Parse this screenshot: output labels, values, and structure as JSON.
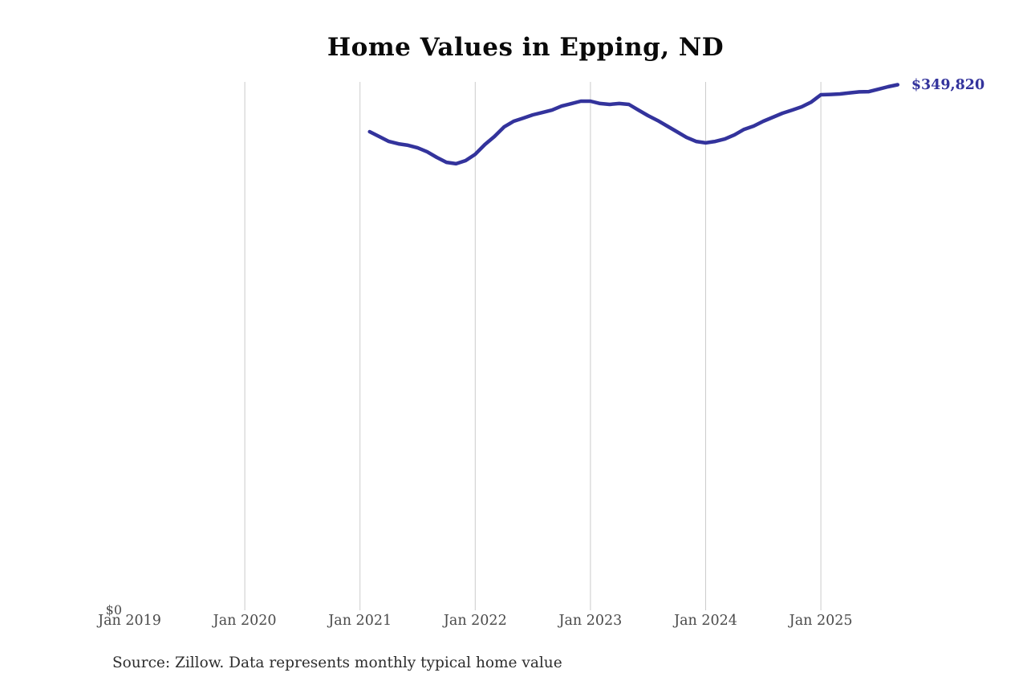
{
  "page": {
    "title": "Home Values in Epping, ND",
    "source_note": "Source: Zillow. Data represents monthly typical home value"
  },
  "chart_data": {
    "type": "line",
    "title": "Home Values in Epping, ND",
    "xlabel": "",
    "ylabel": "",
    "x_axis_start": "2019-01",
    "x_tick_labels": [
      "Jan 2019",
      "Jan 2020",
      "Jan 2021",
      "Jan 2022",
      "Jan 2023",
      "Jan 2024",
      "Jan 2025"
    ],
    "y_axis": {
      "zero_label": "$0",
      "min": 0,
      "top_value": 349820
    },
    "end_label": "$349,820",
    "latest_value": 349820,
    "gridlines": {
      "show": true,
      "skip_first_tick": true,
      "color": "#cccccc"
    },
    "colors": {
      "line": "#33339c",
      "end_label": "#33339c",
      "axis_text": "#4a4a4a"
    },
    "series": [
      {
        "name": "Monthly typical home value",
        "start_month": "2021-02",
        "end_month": "2025-09",
        "color": "#33339c",
        "values": [
          318300,
          315100,
          311800,
          310200,
          309200,
          307500,
          304800,
          301100,
          297800,
          296800,
          298900,
          303200,
          309700,
          315100,
          321500,
          325300,
          327400,
          329600,
          331200,
          332800,
          335500,
          337100,
          338800,
          338800,
          337200,
          336600,
          337200,
          336600,
          332800,
          329100,
          325800,
          322100,
          318300,
          314500,
          311800,
          310800,
          311800,
          313400,
          316200,
          319900,
          322100,
          325300,
          328000,
          330700,
          332800,
          335000,
          338200,
          343100,
          343300,
          343600,
          344400,
          345000,
          345200,
          346800,
          348500,
          349820
        ]
      }
    ]
  }
}
